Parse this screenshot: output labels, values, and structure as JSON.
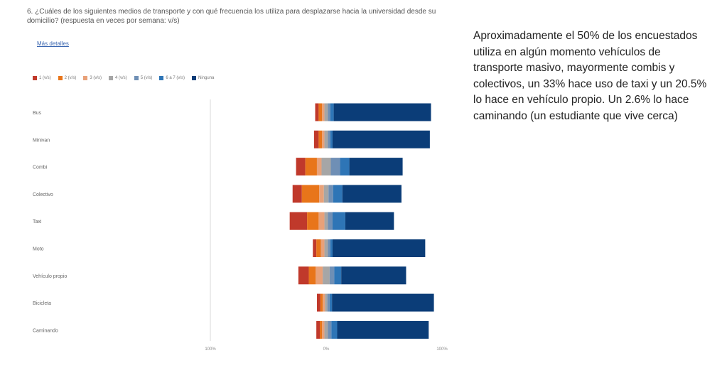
{
  "question": "6. ¿Cuáles de los siguientes medios de transporte y con qué frecuencia los utiliza para desplazarse hacia la universidad desde su domicilio? (respuesta en veces por semana: v/s)",
  "more_details": "Más detalles",
  "summary": "Aproximadamente el 50% de los encuestados utiliza en algún momento vehículos de transporte masivo, mayormente combis y colectivos, un 33% hace uso de taxi y un 20.5% lo hace en vehículo propio. Un 2.6% lo hace caminando (un estudiante que vive cerca)",
  "colors": {
    "s1": "#c0392b",
    "s2": "#e8751a",
    "s3": "#e8a179",
    "s4": "#a6a6a6",
    "s5": "#6f8fb5",
    "s6": "#2e75b6",
    "s7": "#0b3d78"
  },
  "chart_data": {
    "type": "bar",
    "orientation": "horizontal-diverging",
    "categories": [
      "Bus",
      "Minivan",
      "Combi",
      "Colectivo",
      "Taxi",
      "Moto",
      "Vehículo propio",
      "Bicicleta",
      "Caminando"
    ],
    "x_tick_labels": [
      "100%",
      "0%",
      "100%"
    ],
    "xlim": [
      -100,
      100
    ],
    "legend_position": "top-left",
    "series": [
      {
        "name": "1 (v/s)",
        "values": [
          3,
          4,
          8,
          8,
          15,
          3,
          9,
          3,
          3
        ]
      },
      {
        "name": "2 (v/s)",
        "values": [
          3,
          3,
          10,
          15,
          10,
          4,
          6,
          2,
          2
        ]
      },
      {
        "name": "3 (v/s)",
        "values": [
          2,
          2,
          4,
          4,
          5,
          3,
          6,
          2,
          2
        ]
      },
      {
        "name": "4 (v/s)",
        "values": [
          3,
          3,
          8,
          4,
          3,
          3,
          6,
          2,
          3
        ]
      },
      {
        "name": "5 (v/s)",
        "values": [
          2,
          2,
          8,
          4,
          4,
          2,
          4,
          2,
          3
        ]
      },
      {
        "name": "6 a 7 (v/s)",
        "values": [
          3,
          2,
          8,
          8,
          11,
          2,
          6,
          2,
          5
        ]
      },
      {
        "name": "Ninguna",
        "values": [
          84,
          84,
          46,
          51,
          42,
          80,
          56,
          88,
          79
        ]
      }
    ]
  }
}
